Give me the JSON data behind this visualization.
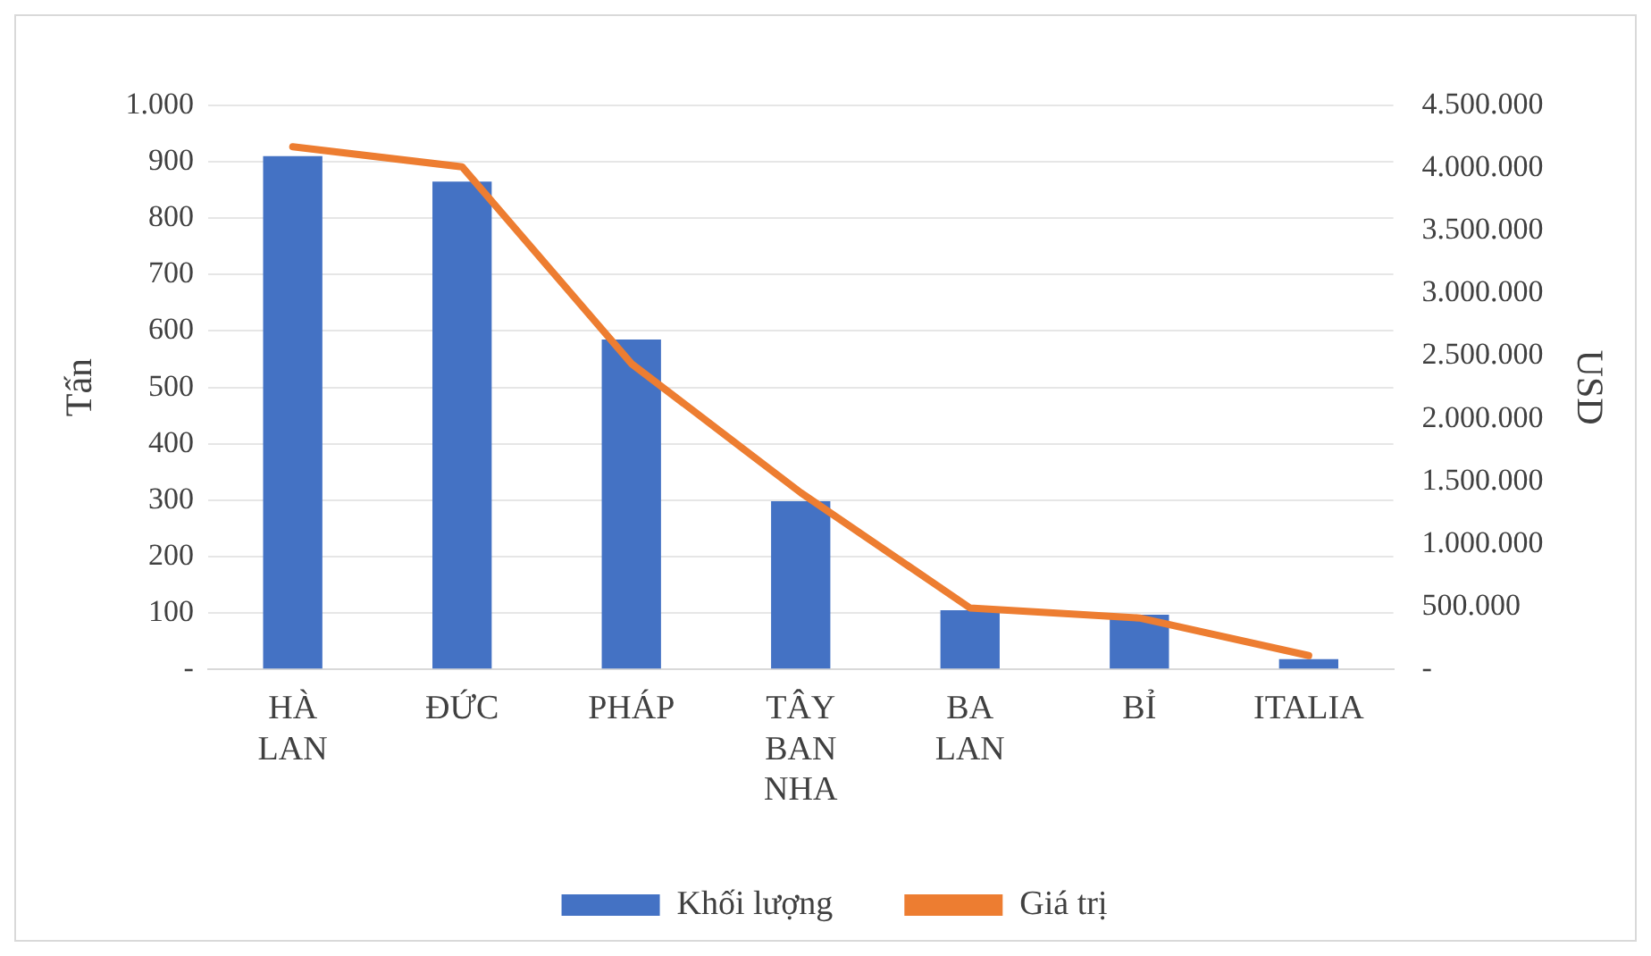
{
  "chart_data": {
    "type": "bar",
    "ylabel": "Tấn",
    "y2label": "USD",
    "categories": [
      "HÀ LAN",
      "ĐỨC",
      "PHÁP",
      "TÂY BAN NHA",
      "BA LAN",
      "BỈ",
      "ITALIA"
    ],
    "series": [
      {
        "name": "Khối lượng",
        "color": "#4472c4",
        "values": [
          910,
          865,
          585,
          298,
          105,
          97,
          18
        ]
      },
      {
        "name": "Giá trị",
        "type": "line",
        "axis": "y2",
        "color": "#ed7d31",
        "values": [
          4170000,
          4010000,
          2440000,
          1410000,
          490000,
          410000,
          110000
        ]
      }
    ],
    "ylim": [
      0,
      1000
    ],
    "yticks": [
      {
        "value": 0,
        "label": "-"
      },
      100,
      200,
      300,
      400,
      500,
      600,
      700,
      800,
      900,
      {
        "value": 1000,
        "label": "1.000"
      }
    ],
    "y2lim": [
      0,
      4500000
    ],
    "y2ticks": [
      {
        "value": 0,
        "label": "-"
      },
      {
        "value": 500000,
        "label": "500.000"
      },
      {
        "value": 1000000,
        "label": "1.000.000"
      },
      {
        "value": 1500000,
        "label": "1.500.000"
      },
      {
        "value": 2000000,
        "label": "2.000.000"
      },
      {
        "value": 2500000,
        "label": "2.500.000"
      },
      {
        "value": 3000000,
        "label": "3.000.000"
      },
      {
        "value": 3500000,
        "label": "3.500.000"
      },
      {
        "value": 4000000,
        "label": "4.000.000"
      },
      {
        "value": 4500000,
        "label": "4.500.000"
      }
    ],
    "grid": "y",
    "legend": "bottom",
    "marker": "none",
    "line_style": "solid"
  }
}
